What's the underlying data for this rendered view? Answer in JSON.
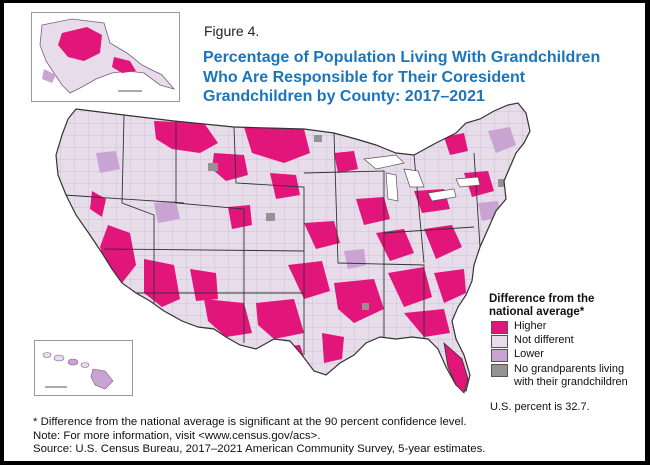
{
  "figure_label": "Figure 4.",
  "title_lines": [
    "Percentage of Population Living With Grandchildren",
    "Who Are Responsible for Their Coresident",
    "Grandchildren by County: 2017–2021"
  ],
  "legend": {
    "title_lines": [
      "Difference from the",
      "national average*"
    ],
    "items": [
      {
        "label": "Higher",
        "color": "#e2157a"
      },
      {
        "label": "Not different",
        "color": "#e6dcea"
      },
      {
        "label": "Lower",
        "color": "#c9a3d2"
      },
      {
        "label": "No grandparents living",
        "label2": "with their grandchildren",
        "color": "#939393"
      }
    ]
  },
  "us_percent": "U.S. percent is 32.7.",
  "notes": [
    "* Difference from the national average is significant at the 90 percent confidence level.",
    "Note: For more information, visit <www.census.gov/acs>.",
    "Source: U.S. Census Bureau, 2017–2021 American Community Survey, 5-year estimates."
  ]
}
